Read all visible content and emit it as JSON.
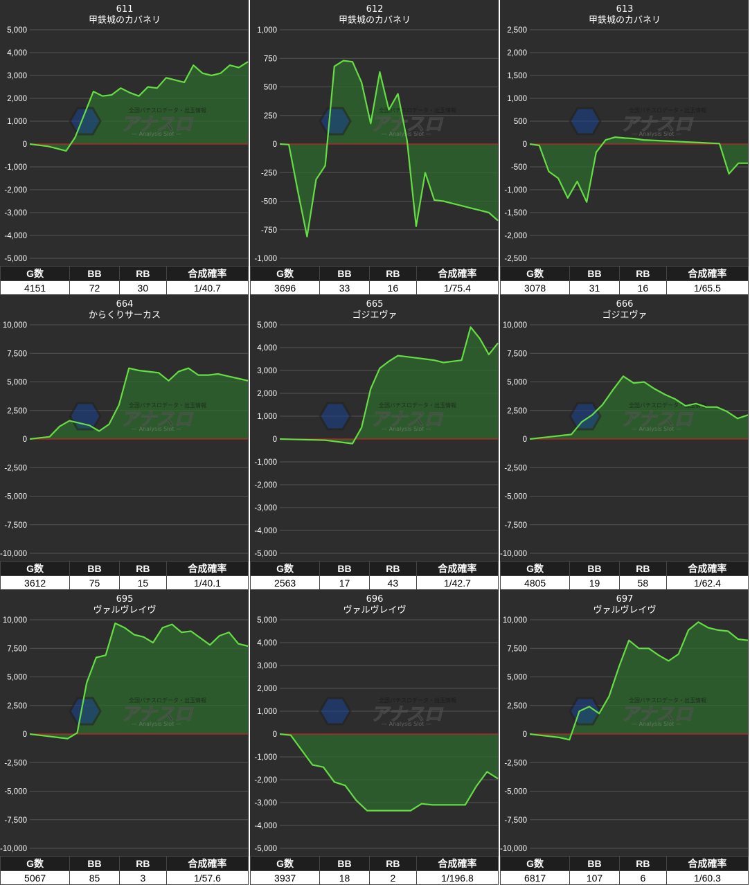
{
  "colors": {
    "line": "#66dd44",
    "fill": "#2e6a2e",
    "zero": "#cc2222",
    "grid": "#555555",
    "panel_bg": "#2d2d2d"
  },
  "watermark": {
    "top": "全国パチスロデータ・出玉情報",
    "logo": "アナスロ",
    "sub": "— Analysis Slot —"
  },
  "table_headers": [
    "G数",
    "BB",
    "RB",
    "合成確率"
  ],
  "panels": [
    {
      "id": "611",
      "name": "甲鉄城のカバネリ",
      "stats": {
        "games": "4151",
        "bb": "72",
        "rb": "30",
        "prob": "1/40.7"
      },
      "chart_data": {
        "type": "area",
        "ylim": [
          -5000,
          5000
        ],
        "y_ticks": [
          "5,000",
          "4,000",
          "3,000",
          "2,000",
          "1,000",
          "0",
          "-1,000",
          "-2,000",
          "-3,000",
          "-4,000",
          "-5,000"
        ],
        "y": [
          0,
          -50,
          -100,
          -200,
          -300,
          300,
          1300,
          2300,
          2100,
          2150,
          2450,
          2250,
          2100,
          2500,
          2450,
          2900,
          2800,
          2700,
          3450,
          3100,
          3000,
          3100,
          3450,
          3350,
          3600
        ]
      }
    },
    {
      "id": "612",
      "name": "甲鉄城のカバネリ",
      "stats": {
        "games": "3696",
        "bb": "33",
        "rb": "16",
        "prob": "1/75.4"
      },
      "chart_data": {
        "type": "area",
        "ylim": [
          -1000,
          1000
        ],
        "y_ticks": [
          "1,000",
          "750",
          "500",
          "250",
          "0",
          "-250",
          "-500",
          "-750",
          "-1,000"
        ],
        "y": [
          0,
          -5,
          -420,
          -810,
          -310,
          -190,
          680,
          730,
          720,
          540,
          180,
          630,
          300,
          440,
          30,
          -720,
          -250,
          -490,
          -500,
          -520,
          -540,
          -560,
          -580,
          -600,
          -670
        ]
      }
    },
    {
      "id": "613",
      "name": "甲鉄城のカバネリ",
      "stats": {
        "games": "3078",
        "bb": "31",
        "rb": "16",
        "prob": "1/65.5"
      },
      "chart_data": {
        "type": "area",
        "ylim": [
          -2500,
          2500
        ],
        "y_ticks": [
          "2,500",
          "2,000",
          "1,500",
          "1,000",
          "500",
          "0",
          "-500",
          "-1,000",
          "-1,500",
          "-2,000",
          "-2,500"
        ],
        "y": [
          0,
          -30,
          -600,
          -750,
          -1180,
          -820,
          -1270,
          -180,
          90,
          150,
          130,
          120,
          90,
          80,
          70,
          60,
          50,
          40,
          30,
          20,
          10,
          -650,
          -420,
          -420
        ]
      }
    },
    {
      "id": "664",
      "name": "からくりサーカス",
      "stats": {
        "games": "3612",
        "bb": "75",
        "rb": "15",
        "prob": "1/40.1"
      },
      "chart_data": {
        "type": "area",
        "ylim": [
          -10000,
          10000
        ],
        "y_ticks": [
          "10,000",
          "7,500",
          "5,000",
          "2,500",
          "0",
          "-2,500",
          "-5,000",
          "-7,500",
          "-10,000"
        ],
        "y": [
          0,
          100,
          200,
          1100,
          1600,
          1400,
          1200,
          700,
          1300,
          3000,
          6200,
          6000,
          5900,
          5800,
          5100,
          5900,
          6200,
          5600,
          5600,
          5700,
          5500,
          5300,
          5100
        ]
      }
    },
    {
      "id": "665",
      "name": "ゴジエヴァ",
      "stats": {
        "games": "2563",
        "bb": "17",
        "rb": "43",
        "prob": "1/42.7"
      },
      "chart_data": {
        "type": "area",
        "ylim": [
          -5000,
          5000
        ],
        "y_ticks": [
          "5,000",
          "4,000",
          "3,000",
          "2,000",
          "1,000",
          "0",
          "-1,000",
          "-2,000",
          "-3,000",
          "-4,000",
          "-5,000"
        ],
        "y": [
          0,
          -10,
          -20,
          -30,
          -40,
          -50,
          -100,
          -150,
          -200,
          500,
          2200,
          3100,
          3400,
          3650,
          3600,
          3550,
          3500,
          3450,
          3350,
          3400,
          3450,
          4900,
          4400,
          3700,
          4200
        ]
      }
    },
    {
      "id": "666",
      "name": "ゴジエヴァ",
      "stats": {
        "games": "4805",
        "bb": "19",
        "rb": "58",
        "prob": "1/62.4"
      },
      "chart_data": {
        "type": "area",
        "ylim": [
          -10000,
          10000
        ],
        "y_ticks": [
          "10,000",
          "7,500",
          "5,000",
          "2,500",
          "0",
          "-2,500",
          "-5,000",
          "-7,500",
          "-10,000"
        ],
        "y": [
          0,
          100,
          200,
          300,
          400,
          1500,
          2100,
          3000,
          4300,
          5500,
          4900,
          5000,
          4400,
          3900,
          3500,
          2900,
          3100,
          2800,
          2800,
          2400,
          1800,
          2100
        ]
      }
    },
    {
      "id": "695",
      "name": "ヴァルヴレイヴ",
      "stats": {
        "games": "5067",
        "bb": "85",
        "rb": "3",
        "prob": "1/57.6"
      },
      "chart_data": {
        "type": "area",
        "ylim": [
          -10000,
          10000
        ],
        "y_ticks": [
          "10,000",
          "7,500",
          "5,000",
          "2,500",
          "0",
          "-2,500",
          "-5,000",
          "-7,500",
          "-10,000"
        ],
        "y": [
          0,
          -100,
          -200,
          -300,
          -400,
          100,
          4500,
          6700,
          6900,
          9700,
          9300,
          8700,
          8500,
          8000,
          9300,
          9600,
          8900,
          9000,
          8400,
          7800,
          8600,
          8900,
          7900,
          7700
        ]
      }
    },
    {
      "id": "696",
      "name": "ヴァルヴレイヴ",
      "stats": {
        "games": "3937",
        "bb": "18",
        "rb": "2",
        "prob": "1/196.8"
      },
      "chart_data": {
        "type": "area",
        "ylim": [
          -5000,
          5000
        ],
        "y_ticks": [
          "5,000",
          "4,000",
          "3,000",
          "2,000",
          "1,000",
          "0",
          "-1,000",
          "-2,000",
          "-3,000",
          "-4,000",
          "-5,000"
        ],
        "y": [
          0,
          -50,
          -700,
          -1350,
          -1450,
          -2100,
          -2250,
          -2900,
          -3350,
          -3350,
          -3350,
          -3350,
          -3350,
          -3050,
          -3100,
          -3100,
          -3100,
          -3100,
          -2300,
          -1650,
          -1950
        ]
      }
    },
    {
      "id": "697",
      "name": "ヴァルヴレイヴ",
      "stats": {
        "games": "6817",
        "bb": "107",
        "rb": "6",
        "prob": "1/60.3"
      },
      "chart_data": {
        "type": "area",
        "ylim": [
          -10000,
          10000
        ],
        "y_ticks": [
          "10,000",
          "7,500",
          "5,000",
          "2,500",
          "0",
          "-2,500",
          "-5,000",
          "-7,500",
          "-10,000"
        ],
        "y": [
          0,
          -100,
          -200,
          -300,
          -500,
          2000,
          2400,
          1800,
          3300,
          5900,
          8200,
          7500,
          7500,
          6900,
          6400,
          7000,
          9100,
          9800,
          9300,
          9100,
          9000,
          8300,
          8200
        ]
      }
    }
  ]
}
